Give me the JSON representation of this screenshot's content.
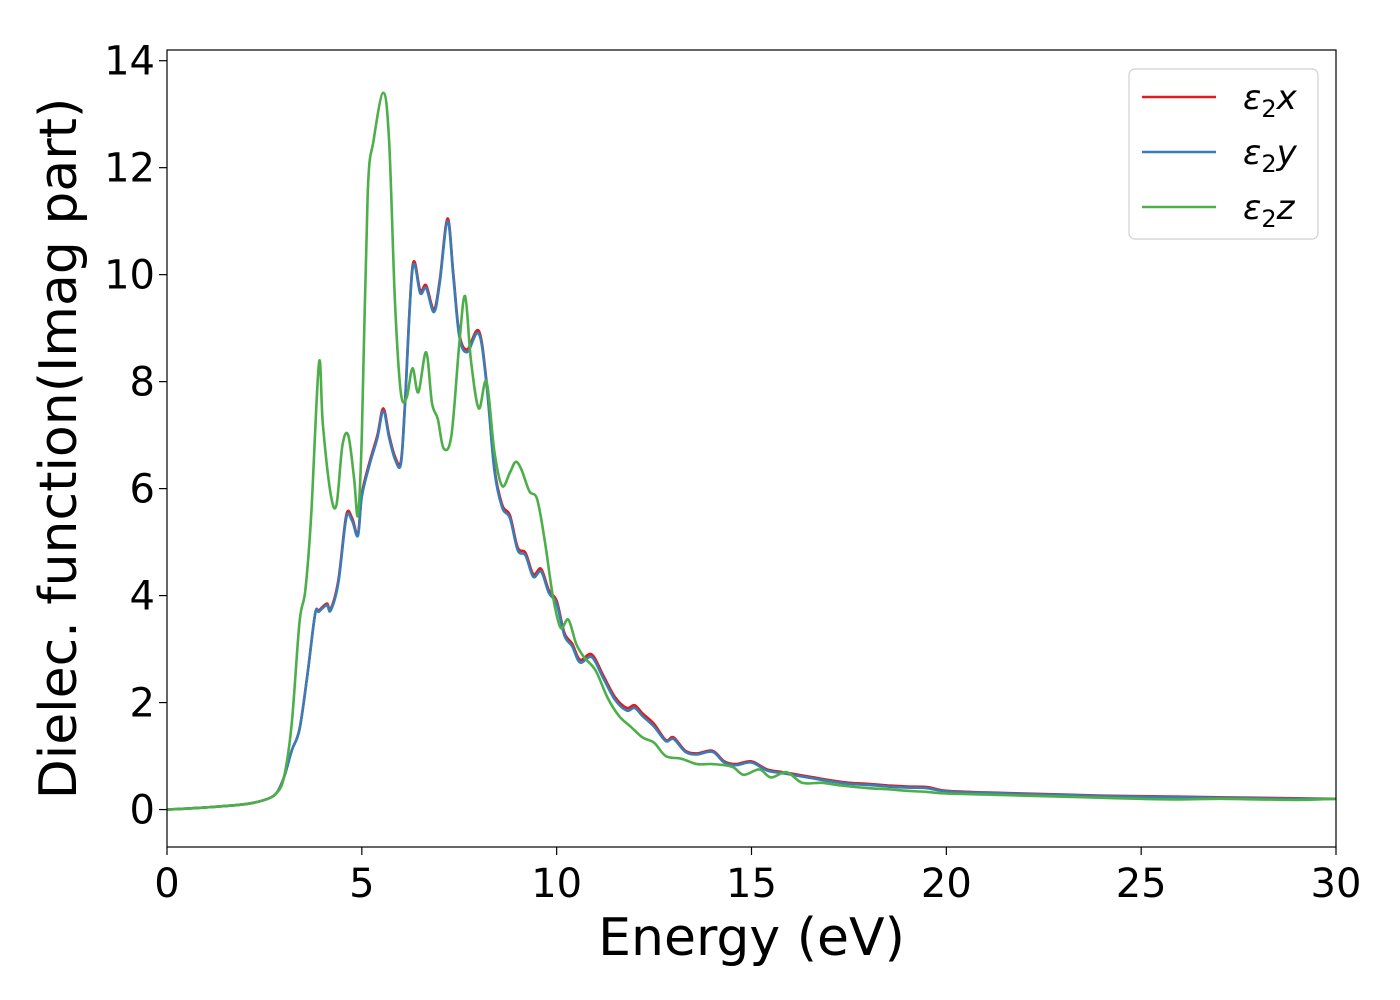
{
  "chart_data": {
    "type": "line",
    "xlabel": "Energy (eV)",
    "ylabel": "Dielec. function(Imag part)",
    "xlim": [
      0,
      30
    ],
    "ylim": [
      -0.7,
      14.2
    ],
    "xticks": [
      0,
      5,
      10,
      15,
      20,
      25,
      30
    ],
    "yticks": [
      0,
      2,
      4,
      6,
      8,
      10,
      12,
      14
    ],
    "grid": false,
    "legend_position": "top-right",
    "series": [
      {
        "name": "ε2x",
        "legend": {
          "base": "ε",
          "sub": "2",
          "var": "x"
        },
        "color": "#e41a1c",
        "x": [
          0,
          1,
          2,
          2.5,
          2.8,
          3.0,
          3.2,
          3.4,
          3.6,
          3.8,
          3.9,
          4.1,
          4.2,
          4.4,
          4.6,
          4.75,
          4.9,
          5.0,
          5.2,
          5.4,
          5.55,
          5.7,
          5.85,
          6.0,
          6.1,
          6.3,
          6.5,
          6.65,
          6.85,
          7.0,
          7.2,
          7.35,
          7.5,
          7.7,
          8.0,
          8.2,
          8.4,
          8.6,
          8.8,
          9.0,
          9.2,
          9.4,
          9.6,
          9.8,
          10.0,
          10.2,
          10.4,
          10.6,
          10.9,
          11.2,
          11.5,
          11.8,
          12.0,
          12.2,
          12.5,
          12.8,
          13.0,
          13.3,
          13.6,
          14.0,
          14.3,
          14.6,
          15.0,
          15.4,
          15.8,
          16.2,
          16.6,
          17.0,
          17.5,
          18.0,
          18.5,
          19.0,
          19.5,
          20.0,
          21.0,
          22.0,
          23.0,
          24.0,
          25.0,
          26.0,
          27.0,
          28.0,
          29.0,
          30.0
        ],
        "values": [
          0,
          0.04,
          0.1,
          0.18,
          0.3,
          0.6,
          1.1,
          1.5,
          2.5,
          3.65,
          3.72,
          3.85,
          3.75,
          4.3,
          5.5,
          5.45,
          5.15,
          5.9,
          6.5,
          7.0,
          7.5,
          7.0,
          6.6,
          6.5,
          7.5,
          10.15,
          9.7,
          9.8,
          9.35,
          9.9,
          11.05,
          10.0,
          8.9,
          8.6,
          8.95,
          8.0,
          6.4,
          5.7,
          5.5,
          4.9,
          4.8,
          4.4,
          4.5,
          4.1,
          3.9,
          3.3,
          3.1,
          2.8,
          2.9,
          2.5,
          2.1,
          1.9,
          1.95,
          1.8,
          1.6,
          1.3,
          1.35,
          1.1,
          1.05,
          1.1,
          0.9,
          0.85,
          0.9,
          0.75,
          0.7,
          0.65,
          0.6,
          0.55,
          0.5,
          0.48,
          0.45,
          0.43,
          0.42,
          0.35,
          0.32,
          0.3,
          0.28,
          0.26,
          0.25,
          0.24,
          0.23,
          0.22,
          0.21,
          0.2
        ]
      },
      {
        "name": "ε2y",
        "legend": {
          "base": "ε",
          "sub": "2",
          "var": "y"
        },
        "color": "#377eb8",
        "x": [
          0,
          1,
          2,
          2.5,
          2.8,
          3.0,
          3.2,
          3.4,
          3.6,
          3.8,
          3.9,
          4.1,
          4.2,
          4.4,
          4.6,
          4.75,
          4.9,
          5.0,
          5.2,
          5.4,
          5.55,
          5.7,
          5.85,
          6.0,
          6.1,
          6.3,
          6.5,
          6.65,
          6.85,
          7.0,
          7.2,
          7.35,
          7.5,
          7.7,
          8.0,
          8.2,
          8.4,
          8.6,
          8.8,
          9.0,
          9.2,
          9.4,
          9.6,
          9.8,
          10.0,
          10.2,
          10.4,
          10.6,
          10.9,
          11.2,
          11.5,
          11.8,
          12.0,
          12.2,
          12.5,
          12.8,
          13.0,
          13.3,
          13.6,
          14.0,
          14.3,
          14.6,
          15.0,
          15.4,
          15.8,
          16.2,
          16.6,
          17.0,
          17.5,
          18.0,
          18.5,
          19.0,
          19.5,
          20.0,
          21.0,
          22.0,
          23.0,
          24.0,
          25.0,
          26.0,
          27.0,
          28.0,
          29.0,
          30.0
        ],
        "values": [
          0,
          0.04,
          0.1,
          0.18,
          0.3,
          0.6,
          1.1,
          1.5,
          2.5,
          3.65,
          3.7,
          3.82,
          3.72,
          4.25,
          5.45,
          5.4,
          5.12,
          5.85,
          6.45,
          6.95,
          7.45,
          6.95,
          6.55,
          6.45,
          7.45,
          10.1,
          9.65,
          9.75,
          9.3,
          9.85,
          11.0,
          9.95,
          8.85,
          8.55,
          8.9,
          7.95,
          6.35,
          5.65,
          5.45,
          4.85,
          4.75,
          4.35,
          4.45,
          4.05,
          3.85,
          3.25,
          3.05,
          2.75,
          2.85,
          2.45,
          2.05,
          1.85,
          1.9,
          1.75,
          1.55,
          1.28,
          1.32,
          1.08,
          1.03,
          1.08,
          0.88,
          0.83,
          0.88,
          0.73,
          0.68,
          0.63,
          0.58,
          0.53,
          0.48,
          0.46,
          0.43,
          0.41,
          0.4,
          0.34,
          0.31,
          0.29,
          0.27,
          0.25,
          0.24,
          0.23,
          0.22,
          0.21,
          0.2,
          0.2
        ]
      },
      {
        "name": "ε2z",
        "legend": {
          "base": "ε",
          "sub": "2",
          "var": "z"
        },
        "color": "#4daf4a",
        "x": [
          0,
          1,
          2,
          2.5,
          2.8,
          3.0,
          3.2,
          3.4,
          3.55,
          3.7,
          3.9,
          4.0,
          4.2,
          4.35,
          4.5,
          4.65,
          4.8,
          4.9,
          5.0,
          5.15,
          5.3,
          5.55,
          5.7,
          5.85,
          6.0,
          6.15,
          6.3,
          6.45,
          6.65,
          6.8,
          6.95,
          7.1,
          7.3,
          7.5,
          7.65,
          7.8,
          8.0,
          8.2,
          8.4,
          8.6,
          8.8,
          8.95,
          9.1,
          9.3,
          9.5,
          9.7,
          9.9,
          10.1,
          10.3,
          10.5,
          10.7,
          11.0,
          11.3,
          11.6,
          11.9,
          12.2,
          12.5,
          12.8,
          13.2,
          13.6,
          14.0,
          14.5,
          14.8,
          15.2,
          15.5,
          15.9,
          16.3,
          16.8,
          17.3,
          18.0,
          18.5,
          19.0,
          19.5,
          20.0,
          21.0,
          22.0,
          23.0,
          24.0,
          25.0,
          26.0,
          27.0,
          28.0,
          29.0,
          30.0
        ],
        "values": [
          0,
          0.04,
          0.1,
          0.18,
          0.3,
          0.6,
          1.6,
          3.5,
          4.1,
          5.5,
          8.35,
          7.2,
          5.9,
          5.7,
          6.8,
          7.0,
          6.2,
          5.5,
          7.0,
          11.5,
          12.5,
          13.4,
          12.5,
          9.5,
          7.8,
          7.7,
          8.25,
          7.8,
          8.55,
          7.6,
          7.3,
          6.75,
          7.0,
          8.7,
          9.6,
          8.4,
          7.5,
          8.0,
          6.7,
          6.05,
          6.3,
          6.5,
          6.35,
          5.95,
          5.8,
          5.0,
          4.0,
          3.4,
          3.55,
          3.1,
          2.85,
          2.6,
          2.1,
          1.75,
          1.55,
          1.35,
          1.25,
          1.0,
          0.95,
          0.85,
          0.85,
          0.8,
          0.65,
          0.75,
          0.6,
          0.7,
          0.5,
          0.5,
          0.45,
          0.4,
          0.38,
          0.35,
          0.33,
          0.3,
          0.28,
          0.26,
          0.24,
          0.22,
          0.2,
          0.19,
          0.2,
          0.19,
          0.18,
          0.2
        ]
      }
    ]
  }
}
